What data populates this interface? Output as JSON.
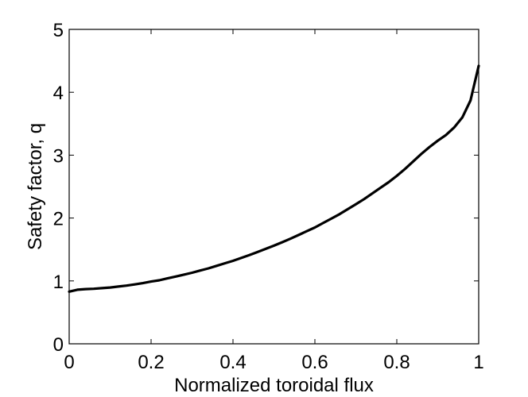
{
  "chart_data": {
    "type": "line",
    "title": "",
    "xlabel": "Normalized toroidal flux",
    "ylabel": "Safety factor, q",
    "xlim": [
      0,
      1
    ],
    "ylim": [
      0,
      5
    ],
    "xticks": [
      0,
      0.2,
      0.4,
      0.6,
      0.8,
      1
    ],
    "xtick_labels": [
      "0",
      "0.2",
      "0.4",
      "0.6",
      "0.8",
      "1"
    ],
    "yticks": [
      0,
      1,
      2,
      3,
      4,
      5
    ],
    "ytick_labels": [
      "0",
      "1",
      "2",
      "3",
      "4",
      "5"
    ],
    "grid": false,
    "legend": "none",
    "line_color": "#000000",
    "series": [
      {
        "x": [
          0,
          0.02,
          0.04,
          0.06,
          0.08,
          0.1,
          0.12,
          0.14,
          0.16,
          0.18,
          0.2,
          0.22,
          0.24,
          0.26,
          0.28,
          0.3,
          0.32,
          0.34,
          0.36,
          0.38,
          0.4,
          0.42,
          0.44,
          0.46,
          0.48,
          0.5,
          0.52,
          0.54,
          0.56,
          0.58,
          0.6,
          0.62,
          0.64,
          0.66,
          0.68,
          0.7,
          0.72,
          0.74,
          0.76,
          0.78,
          0.8,
          0.82,
          0.84,
          0.86,
          0.88,
          0.9,
          0.92,
          0.94,
          0.96,
          0.98,
          1.0
        ],
        "values": [
          0.83,
          0.86,
          0.87,
          0.875,
          0.885,
          0.895,
          0.91,
          0.925,
          0.945,
          0.965,
          0.99,
          1.01,
          1.04,
          1.07,
          1.1,
          1.13,
          1.165,
          1.2,
          1.24,
          1.28,
          1.32,
          1.365,
          1.41,
          1.46,
          1.51,
          1.56,
          1.615,
          1.67,
          1.73,
          1.79,
          1.85,
          1.92,
          1.99,
          2.06,
          2.14,
          2.22,
          2.3,
          2.39,
          2.48,
          2.57,
          2.67,
          2.78,
          2.9,
          3.02,
          3.13,
          3.23,
          3.32,
          3.44,
          3.6,
          3.87,
          4.42
        ]
      }
    ]
  }
}
